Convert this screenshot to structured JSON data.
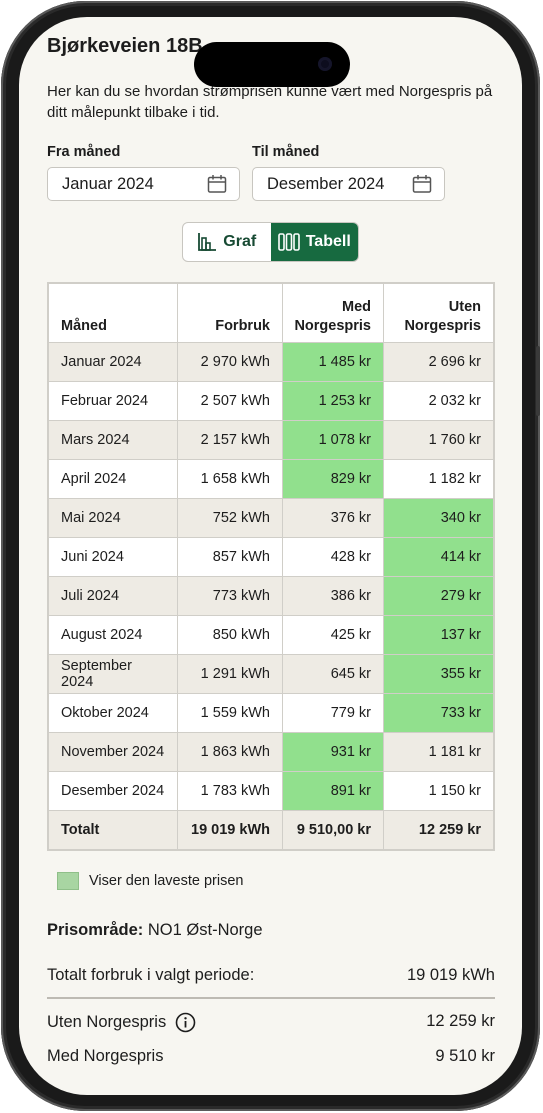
{
  "header": {
    "title": "Bjørkeveien 18B",
    "intro": "Her kan du se hvordan strømprisen kunne vært med Norgespris på ditt målepunkt tilbake i tid."
  },
  "filters": {
    "from_label": "Fra måned",
    "from_value": "Januar 2024",
    "to_label": "Til måned",
    "to_value": "Desember 2024"
  },
  "view_toggle": {
    "graph_label": "Graf",
    "table_label": "Tabell",
    "selected": "Tabell"
  },
  "table": {
    "headers": {
      "month": "Måned",
      "usage": "Forbruk",
      "with_1": "Med",
      "with_2": "Norgespris",
      "without_1": "Uten",
      "without_2": "Norgespris"
    },
    "rows": [
      {
        "month": "Januar 2024",
        "usage": "2 970 kWh",
        "with": "1 485 kr",
        "without": "2 696 kr",
        "lowest": "with"
      },
      {
        "month": "Februar 2024",
        "usage": "2 507 kWh",
        "with": "1 253 kr",
        "without": "2 032 kr",
        "lowest": "with"
      },
      {
        "month": "Mars 2024",
        "usage": "2 157 kWh",
        "with": "1 078 kr",
        "without": "1 760 kr",
        "lowest": "with"
      },
      {
        "month": "April 2024",
        "usage": "1 658 kWh",
        "with": "829 kr",
        "without": "1 182 kr",
        "lowest": "with"
      },
      {
        "month": "Mai 2024",
        "usage": "752 kWh",
        "with": "376 kr",
        "without": "340 kr",
        "lowest": "without"
      },
      {
        "month": "Juni 2024",
        "usage": "857 kWh",
        "with": "428 kr",
        "without": "414 kr",
        "lowest": "without"
      },
      {
        "month": "Juli 2024",
        "usage": "773 kWh",
        "with": "386  kr",
        "without": "279 kr",
        "lowest": "without"
      },
      {
        "month": "August 2024",
        "usage": "850 kWh",
        "with": "425  kr",
        "without": "137 kr",
        "lowest": "without"
      },
      {
        "month": "September 2024",
        "usage": "1 291 kWh",
        "with": "645  kr",
        "without": "355 kr",
        "lowest": "without"
      },
      {
        "month": "Oktober 2024",
        "usage": "1 559 kWh",
        "with": "779  kr",
        "without": "733 kr",
        "lowest": "without"
      },
      {
        "month": "November 2024",
        "usage": "1 863 kWh",
        "with": "931  kr",
        "without": "1 181 kr",
        "lowest": "with"
      },
      {
        "month": "Desember 2024",
        "usage": "1 783 kWh",
        "with": "891  kr",
        "without": "1 150 kr",
        "lowest": "with"
      }
    ],
    "total": {
      "label": "Totalt",
      "usage": "19 019 kWh",
      "with": "9 510,00 kr",
      "without": "12 259 kr"
    }
  },
  "legend": {
    "text": "Viser den laveste prisen",
    "color": "#a8d5a2"
  },
  "summary": {
    "region_label": "Prisområde:",
    "region_value": "NO1 Øst-Norge",
    "total_usage_label": "Totalt forbruk i valgt periode:",
    "total_usage_value": "19 019 kWh",
    "without_label": "Uten Norgespris",
    "without_value": "12 259 kr",
    "with_label": "Med Norgespris",
    "with_value": "9 510 kr"
  },
  "colors": {
    "accent": "#176a40",
    "highlight": "#91e08d",
    "row_shade": "#eeebe4",
    "background": "#f7f6f1"
  },
  "icons": [
    "calendar-icon",
    "bar-chart-icon",
    "table-columns-icon",
    "info-icon"
  ]
}
